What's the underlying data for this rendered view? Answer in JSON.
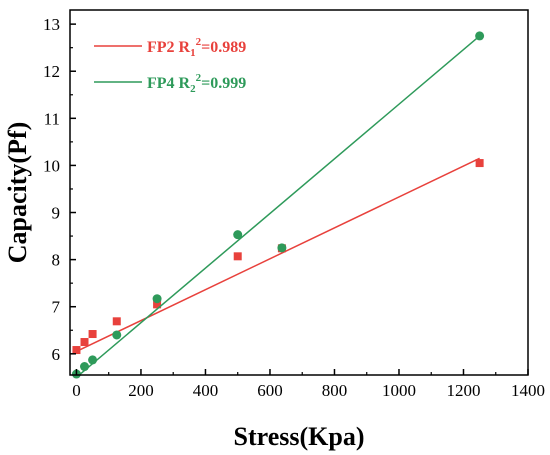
{
  "chart_data": {
    "type": "scatter",
    "xlabel": "Stress(Kpa)",
    "ylabel": "Capacity(Pf)",
    "xlim": [
      -20,
      1400
    ],
    "ylim": [
      5.55,
      13.3
    ],
    "xticks": [
      0,
      200,
      400,
      600,
      800,
      1000,
      1200,
      1400
    ],
    "yticks": [
      6,
      7,
      8,
      9,
      10,
      11,
      12,
      13
    ],
    "grid": false,
    "legend_position": "top-left",
    "series": [
      {
        "legend_label": "FP2 R",
        "legend_subscript": "1",
        "legend_superscript": "2",
        "legend_value": "=0.989",
        "color": "#e8413c",
        "marker": "square",
        "x": [
          0,
          25,
          50,
          125,
          250,
          500,
          637,
          1250
        ],
        "y": [
          6.08,
          6.25,
          6.42,
          6.69,
          7.05,
          8.07,
          8.24,
          10.05
        ],
        "fit": {
          "x": [
            0,
            1250
          ],
          "y": [
            6.05,
            10.15
          ]
        }
      },
      {
        "legend_label": "FP4 R",
        "legend_subscript": "2",
        "legend_superscript": "2",
        "legend_value": "=0.999",
        "color": "#2e9a5a",
        "marker": "circle",
        "x": [
          0,
          25,
          50,
          125,
          250,
          500,
          637,
          1250
        ],
        "y": [
          5.57,
          5.73,
          5.87,
          6.4,
          7.17,
          8.53,
          8.25,
          12.75
        ],
        "fit": {
          "x": [
            0,
            1250
          ],
          "y": [
            5.5,
            12.75
          ]
        }
      }
    ]
  }
}
